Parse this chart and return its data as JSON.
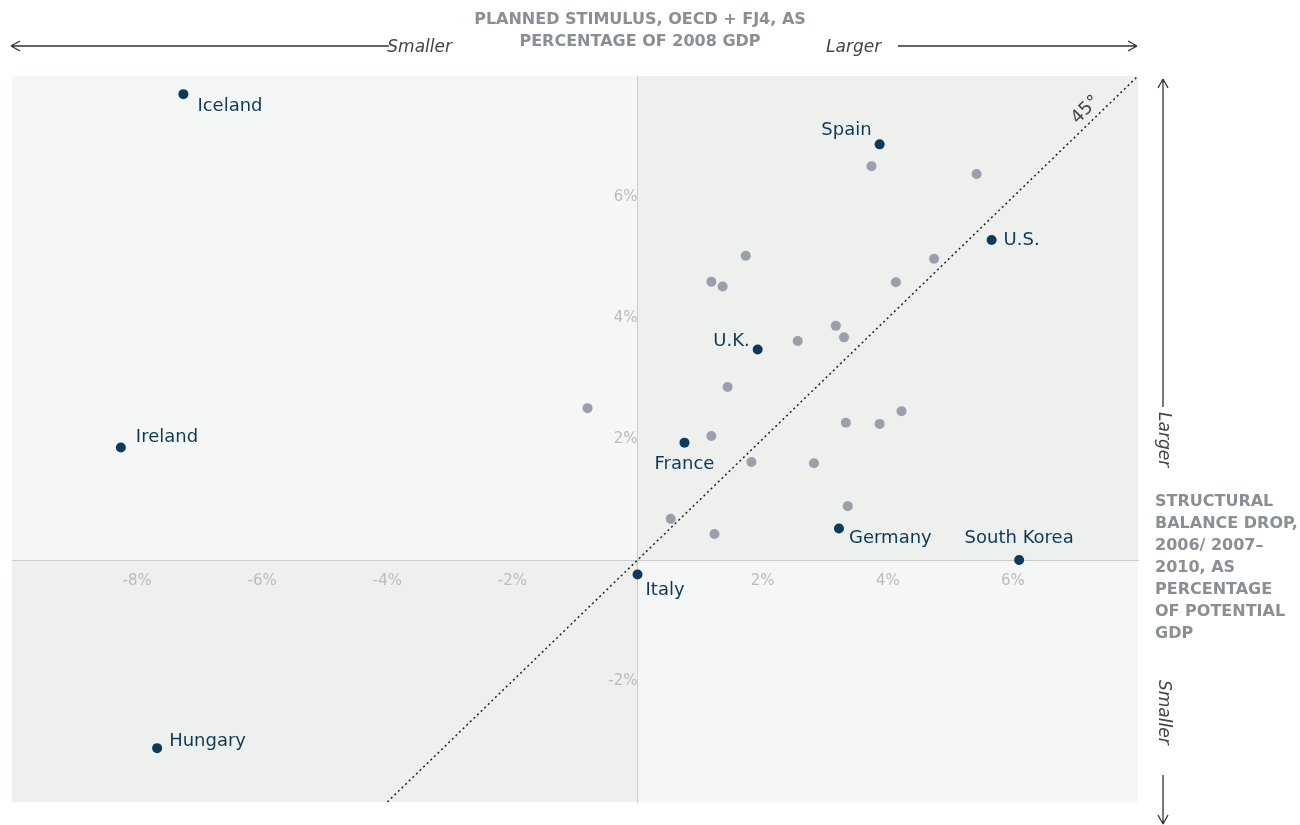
{
  "chart_data": {
    "type": "scatter",
    "xlabel": "PLANNED STIMULUS, OECD + FJ4, AS PERCENTAGE OF 2008 GDP",
    "ylabel": "STRUCTURAL BALANCE DROP, 2006/ 2007–2010, AS PERCENTAGE OF POTENTIAL GDP",
    "xlim": [
      -10,
      8
    ],
    "ylim": [
      -4,
      8
    ],
    "xticks": [
      {
        "value": -8,
        "label": "-8%"
      },
      {
        "value": -6,
        "label": "-6%"
      },
      {
        "value": -4,
        "label": "-4%"
      },
      {
        "value": -2,
        "label": "-2%"
      },
      {
        "value": 2,
        "label": "2%"
      },
      {
        "value": 4,
        "label": "4%"
      },
      {
        "value": 6,
        "label": "6%"
      }
    ],
    "yticks": [
      {
        "value": -2,
        "label": "-2%"
      },
      {
        "value": 2,
        "label": "2%"
      },
      {
        "value": 4,
        "label": "4%"
      },
      {
        "value": 6,
        "label": "6%"
      }
    ],
    "grid": false,
    "legend": false,
    "marker": "circle",
    "line_style": "dotted",
    "series": [
      {
        "color": "#9a9fab",
        "x": [
          -0.8,
          3.74,
          5.42,
          1.73,
          1.18,
          1.36,
          4.74,
          4.13,
          3.17,
          3.3,
          2.56,
          1.44,
          1.18,
          3.33,
          3.87,
          4.22,
          1.82,
          2.82,
          3.36,
          0.53,
          1.23
        ],
        "values": [
          2.51,
          6.51,
          6.38,
          5.03,
          4.6,
          4.52,
          4.98,
          4.59,
          3.87,
          3.68,
          3.62,
          2.86,
          2.05,
          2.27,
          2.25,
          2.46,
          1.62,
          1.6,
          0.89,
          0.68,
          0.43
        ]
      },
      {
        "color": "#0d3a5c",
        "x": [
          -7.26,
          -8.26,
          -7.68,
          0.0,
          0.75,
          1.92,
          3.87,
          5.66,
          3.22,
          6.1
        ],
        "values": [
          7.7,
          1.86,
          -3.11,
          -0.24,
          1.94,
          3.48,
          6.87,
          5.29,
          0.52,
          0.0
        ]
      },
      {
        "type": "line",
        "marker": "none",
        "color": "#222222",
        "x": [
          -4,
          8
        ],
        "values": [
          -4,
          8
        ]
      }
    ],
    "annotations": [
      "Smaller",
      "Larger",
      "Larger",
      "Smaller",
      {
        "text": "Iceland",
        "x": -7.26,
        "y": 7.7
      },
      {
        "text": "Ireland",
        "x": -8.26,
        "y": 1.86
      },
      {
        "text": "Hungary",
        "x": -7.68,
        "y": -3.11
      },
      {
        "text": "Italy",
        "x": 0.0,
        "y": -0.24
      },
      {
        "text": "France",
        "x": 0.75,
        "y": 1.94
      },
      {
        "text": "U.K.",
        "x": 1.92,
        "y": 3.48
      },
      {
        "text": "Spain",
        "x": 3.87,
        "y": 6.87
      },
      {
        "text": "U.S.",
        "x": 5.66,
        "y": 5.29
      },
      {
        "text": "Germany",
        "x": 3.22,
        "y": 0.52
      },
      {
        "text": "South Korea",
        "x": 6.1,
        "y": 0.0
      },
      {
        "text": "45°",
        "x": 7.3,
        "y": 7.3
      }
    ]
  }
}
